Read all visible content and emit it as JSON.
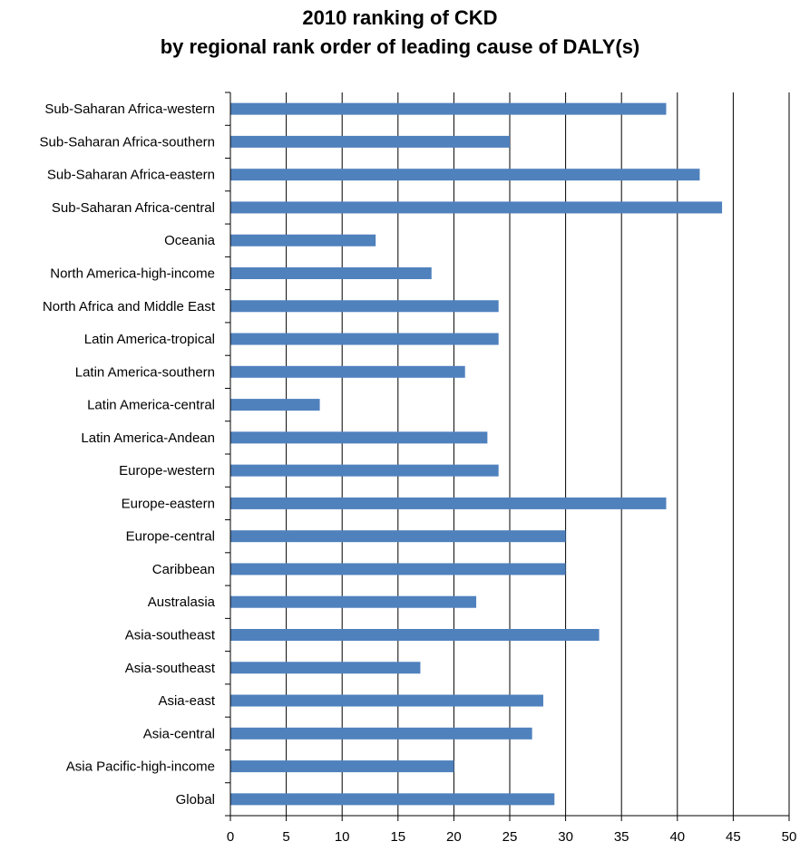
{
  "chart_data": {
    "type": "bar",
    "orientation": "horizontal",
    "title_lines": [
      "2010 ranking of CKD",
      "by regional rank order of leading cause of DALY(s)"
    ],
    "xlabel": "",
    "ylabel": "",
    "xlim": [
      0,
      50
    ],
    "x_ticks": [
      0,
      5,
      10,
      15,
      20,
      25,
      30,
      35,
      40,
      45,
      50
    ],
    "grid": "vertical",
    "legend": "none",
    "bar_color": "#4f81bd",
    "categories": [
      "Sub-Saharan Africa-western",
      "Sub-Saharan Africa-southern",
      "Sub-Saharan Africa-eastern",
      "Sub-Saharan Africa-central",
      "Oceania",
      "North America-high-income",
      "North Africa and Middle East",
      "Latin America-tropical",
      "Latin America-southern",
      "Latin America-central",
      "Latin America-Andean",
      "Europe-western",
      "Europe-eastern",
      "Europe-central",
      "Caribbean",
      "Australasia",
      "Asia-southeast",
      "Asia-southeast",
      "Asia-east",
      "Asia-central",
      "Asia Pacific-high-income",
      "Global"
    ],
    "values": [
      39,
      25,
      42,
      44,
      13,
      18,
      24,
      24,
      21,
      8,
      23,
      24,
      39,
      30,
      30,
      22,
      33,
      17,
      28,
      27,
      20,
      29
    ]
  }
}
